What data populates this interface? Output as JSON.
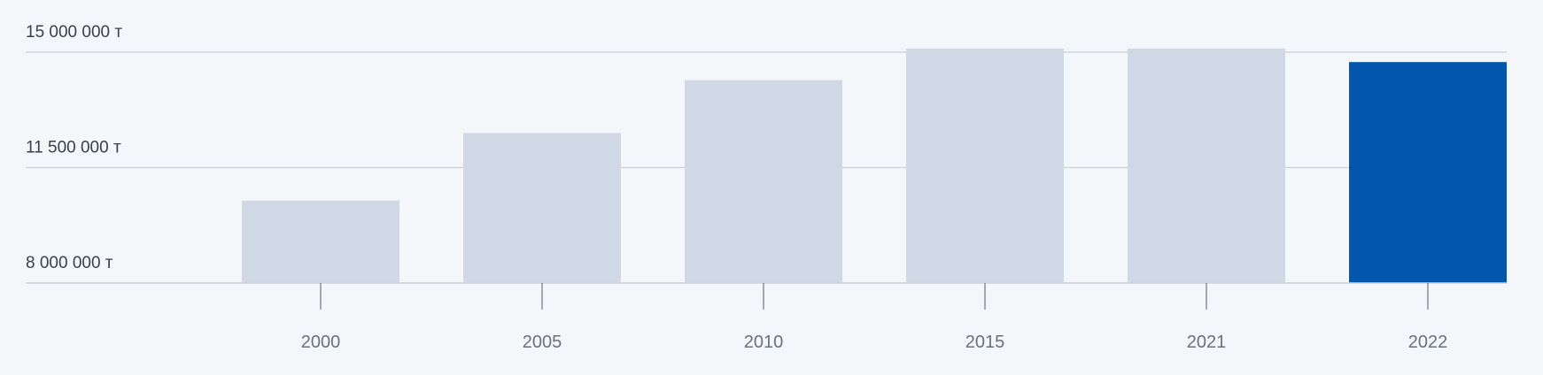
{
  "chart_data": {
    "type": "bar",
    "title": "",
    "xlabel": "",
    "ylabel": "",
    "categories": [
      "2000",
      "2005",
      "2010",
      "2015",
      "2021",
      "2022"
    ],
    "values": [
      10500000,
      12550000,
      14150000,
      15110000,
      15110000,
      14700000
    ],
    "ylim": [
      8000000,
      15000000
    ],
    "y_ticks": [
      {
        "value": 8000000,
        "label": "8 000 000 т"
      },
      {
        "value": 11500000,
        "label": "11 500 000 т"
      },
      {
        "value": 15000000,
        "label": "15 000 000 т"
      }
    ],
    "highlight_category": "2022",
    "grid": true,
    "colors": {
      "bar": "#d1d8e5",
      "highlight": "#0257ac",
      "grid": "#cfd4dc",
      "tick_mark": "#555a62"
    }
  }
}
